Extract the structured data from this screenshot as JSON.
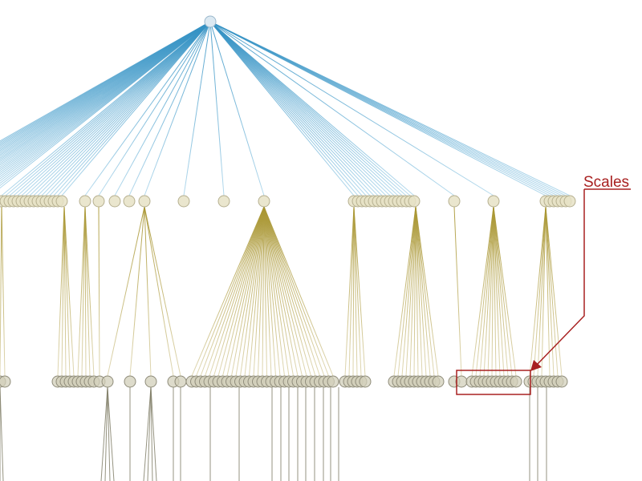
{
  "colors": {
    "root_link": "#3d9ac8",
    "root_link_light": "#a8d3e8",
    "node_fill": "#e6e2c6",
    "node_stroke": "#b6b090",
    "deep_node_fill": "#d2cfb9",
    "deep_node_stroke": "#8f8c7a",
    "level2_link": "#cdbf82",
    "level2_link_dark": "#b2a24a",
    "level3_link": "#7a7860",
    "root_fill": "#dce9f2",
    "root_stroke": "#9bb8cc",
    "callout": "#a82020"
  },
  "callout": {
    "label": "Scales"
  }
}
